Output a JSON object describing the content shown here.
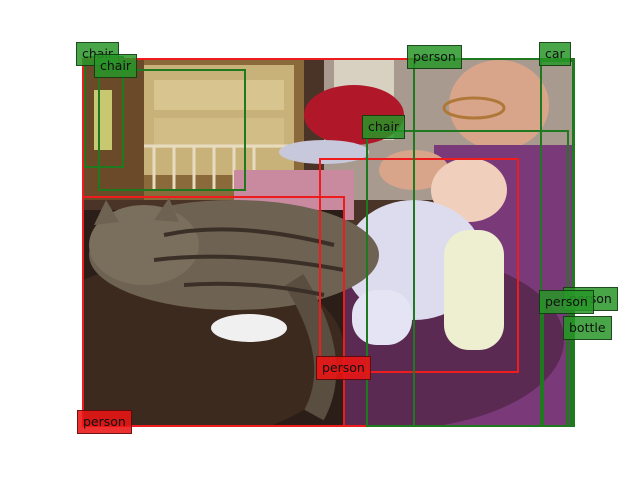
{
  "photo": {
    "subject_icons": [
      "cat-icon",
      "man-icon",
      "baby-icon",
      "red-hat-icon",
      "crib-icon"
    ]
  },
  "colors": {
    "person_box": "#ee1c1c",
    "object_box": "#1f7a1f",
    "person_label_bg": "#eb1414",
    "object_label_bg": "#289628"
  },
  "detections": [
    {
      "id": "person-1",
      "label": "person"
    },
    {
      "id": "person-2",
      "label": "person"
    },
    {
      "id": "person-3",
      "label": "person"
    },
    {
      "id": "person-4",
      "label": "person"
    },
    {
      "id": "person-5",
      "label": "person"
    },
    {
      "id": "person-6",
      "label": "person"
    },
    {
      "id": "chair-1",
      "label": "chair"
    },
    {
      "id": "chair-2",
      "label": "chair"
    },
    {
      "id": "chair-3",
      "label": "chair"
    },
    {
      "id": "car-1",
      "label": "car"
    },
    {
      "id": "bottle-1",
      "label": "bottle"
    }
  ]
}
